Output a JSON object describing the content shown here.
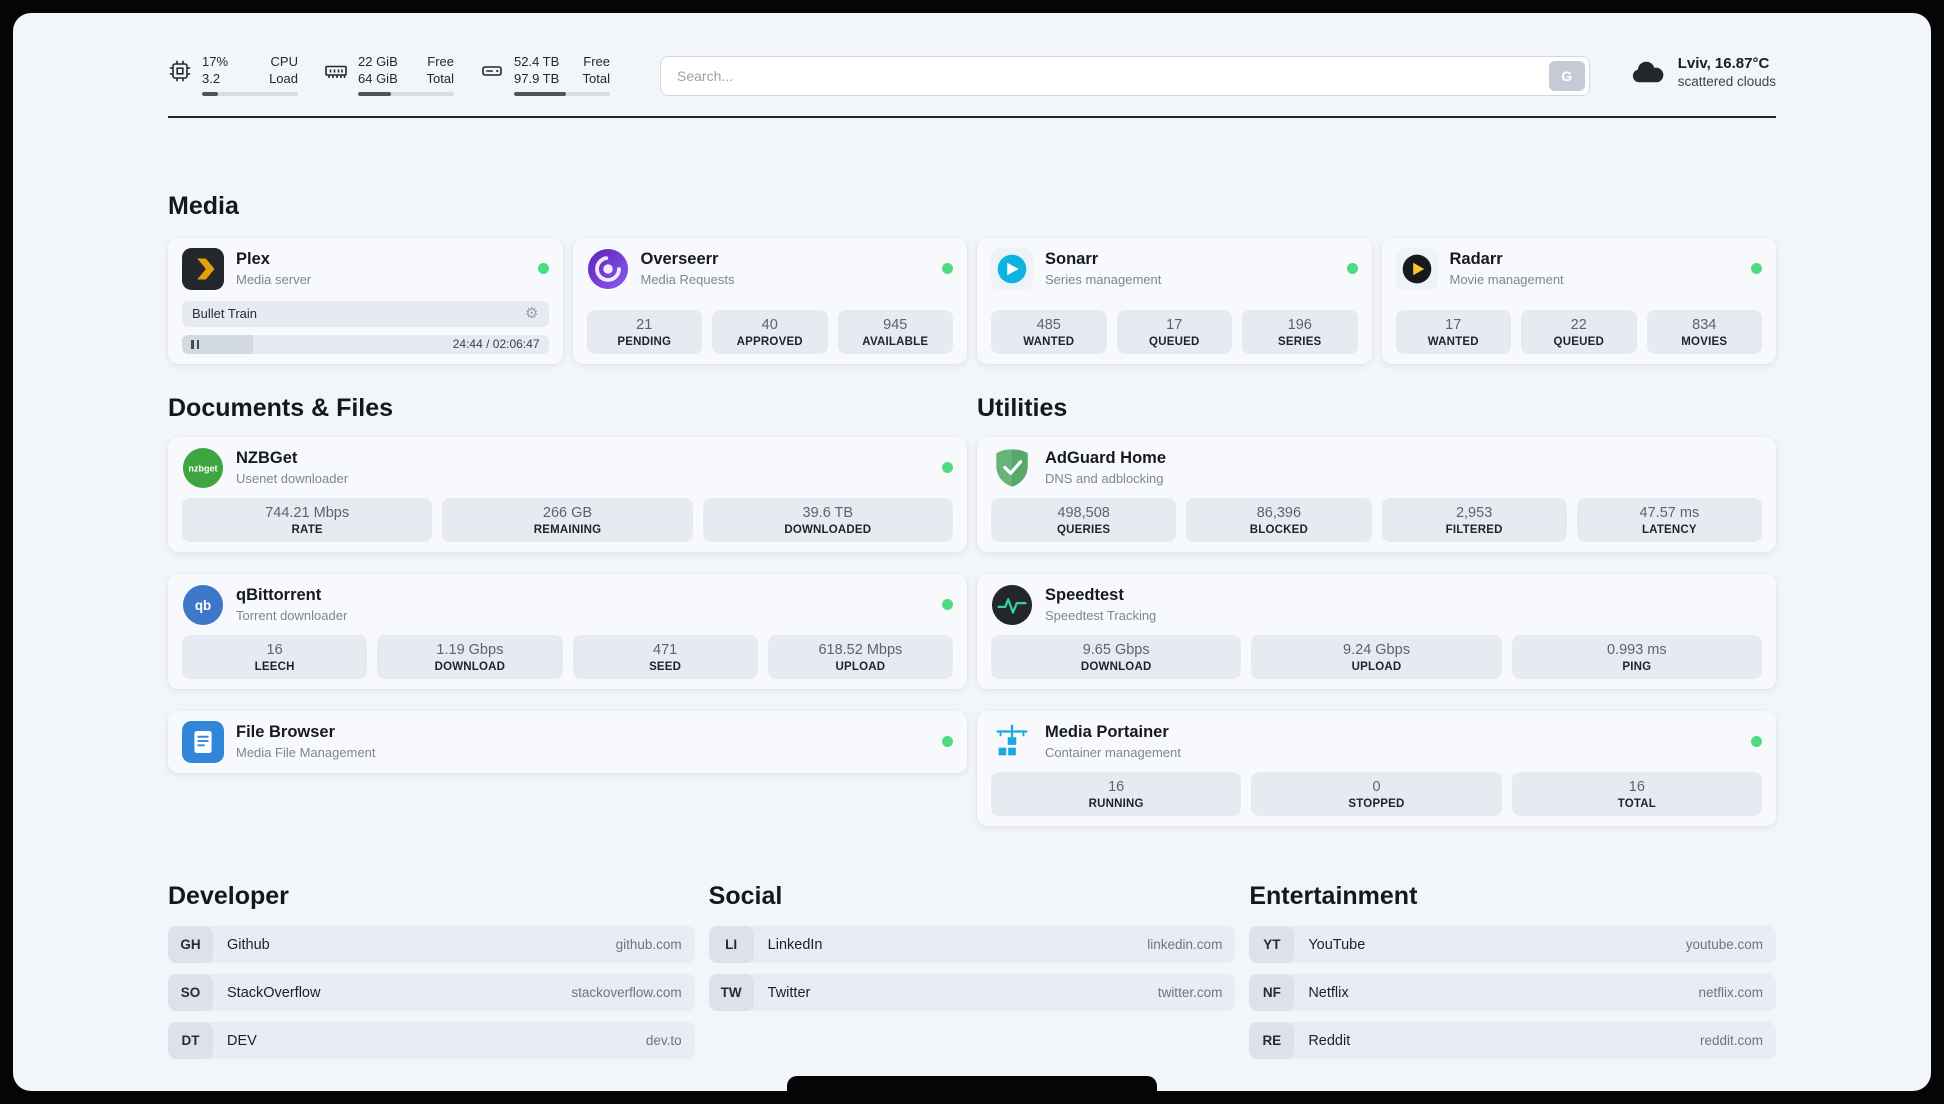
{
  "header": {
    "cpu": {
      "values": [
        "17%",
        "3.2"
      ],
      "labels": [
        "CPU",
        "Load"
      ],
      "percent": 17
    },
    "ram": {
      "values": [
        "22 GiB",
        "64 GiB"
      ],
      "labels": [
        "Free",
        "Total"
      ],
      "percent": 34
    },
    "disk": {
      "values": [
        "52.4 TB",
        "97.9 TB"
      ],
      "labels": [
        "Free",
        "Total"
      ],
      "percent": 54
    },
    "search": {
      "placeholder": "Search...",
      "engine_label": "G"
    },
    "weather": {
      "location": "Lviv, 16.87°C",
      "condition": "scattered clouds"
    }
  },
  "media": {
    "title": "Media",
    "plex": {
      "name": "Plex",
      "subtitle": "Media server",
      "now_playing": "Bullet Train",
      "time": "24:44 / 02:06:47",
      "progress_percent": 19.5
    },
    "overseerr": {
      "name": "Overseerr",
      "subtitle": "Media Requests",
      "stats": [
        {
          "value": "21",
          "label": "PENDING"
        },
        {
          "value": "40",
          "label": "APPROVED"
        },
        {
          "value": "945",
          "label": "AVAILABLE"
        }
      ]
    },
    "sonarr": {
      "name": "Sonarr",
      "subtitle": "Series management",
      "stats": [
        {
          "value": "485",
          "label": "WANTED"
        },
        {
          "value": "17",
          "label": "QUEUED"
        },
        {
          "value": "196",
          "label": "SERIES"
        }
      ]
    },
    "radarr": {
      "name": "Radarr",
      "subtitle": "Movie management",
      "stats": [
        {
          "value": "17",
          "label": "WANTED"
        },
        {
          "value": "22",
          "label": "QUEUED"
        },
        {
          "value": "834",
          "label": "MOVIES"
        }
      ]
    }
  },
  "documents": {
    "title": "Documents & Files",
    "nzbget": {
      "name": "NZBGet",
      "subtitle": "Usenet downloader",
      "stats": [
        {
          "value": "744.21 Mbps",
          "label": "RATE"
        },
        {
          "value": "266 GB",
          "label": "REMAINING"
        },
        {
          "value": "39.6 TB",
          "label": "DOWNLOADED"
        }
      ]
    },
    "qbittorrent": {
      "name": "qBittorrent",
      "subtitle": "Torrent downloader",
      "stats": [
        {
          "value": "16",
          "label": "LEECH"
        },
        {
          "value": "1.19 Gbps",
          "label": "DOWNLOAD"
        },
        {
          "value": "471",
          "label": "SEED"
        },
        {
          "value": "618.52 Mbps",
          "label": "UPLOAD"
        }
      ]
    },
    "filebrowser": {
      "name": "File Browser",
      "subtitle": "Media File Management"
    }
  },
  "utilities": {
    "title": "Utilities",
    "adguard": {
      "name": "AdGuard Home",
      "subtitle": "DNS and adblocking",
      "stats": [
        {
          "value": "498,508",
          "label": "QUERIES"
        },
        {
          "value": "86,396",
          "label": "BLOCKED"
        },
        {
          "value": "2,953",
          "label": "FILTERED"
        },
        {
          "value": "47.57 ms",
          "label": "LATENCY"
        }
      ]
    },
    "speedtest": {
      "name": "Speedtest",
      "subtitle": "Speedtest Tracking",
      "stats": [
        {
          "value": "9.65 Gbps",
          "label": "DOWNLOAD"
        },
        {
          "value": "9.24 Gbps",
          "label": "UPLOAD"
        },
        {
          "value": "0.993 ms",
          "label": "PING"
        }
      ]
    },
    "portainer": {
      "name": "Media Portainer",
      "subtitle": "Container management",
      "stats": [
        {
          "value": "16",
          "label": "RUNNING"
        },
        {
          "value": "0",
          "label": "STOPPED"
        },
        {
          "value": "16",
          "label": "TOTAL"
        }
      ]
    }
  },
  "bookmarks": {
    "developer": {
      "title": "Developer",
      "links": [
        {
          "abbr": "GH",
          "name": "Github",
          "domain": "github.com"
        },
        {
          "abbr": "SO",
          "name": "StackOverflow",
          "domain": "stackoverflow.com"
        },
        {
          "abbr": "DT",
          "name": "DEV",
          "domain": "dev.to"
        }
      ]
    },
    "social": {
      "title": "Social",
      "links": [
        {
          "abbr": "LI",
          "name": "LinkedIn",
          "domain": "linkedin.com"
        },
        {
          "abbr": "TW",
          "name": "Twitter",
          "domain": "twitter.com"
        }
      ]
    },
    "entertainment": {
      "title": "Entertainment",
      "links": [
        {
          "abbr": "YT",
          "name": "YouTube",
          "domain": "youtube.com"
        },
        {
          "abbr": "NF",
          "name": "Netflix",
          "domain": "netflix.com"
        },
        {
          "abbr": "RE",
          "name": "Reddit",
          "domain": "reddit.com"
        }
      ]
    }
  },
  "icons": {
    "nzbget_text": "nzbget",
    "qbittorrent_text": "qb"
  },
  "colors": {
    "status_online": "#4ade80",
    "plex_amber": "#e5a00d",
    "sonarr_blue": "#0fb3e2",
    "radarr_yellow": "#ffc230",
    "adguard_green": "#67b478",
    "portainer_blue": "#1ba8e0"
  }
}
